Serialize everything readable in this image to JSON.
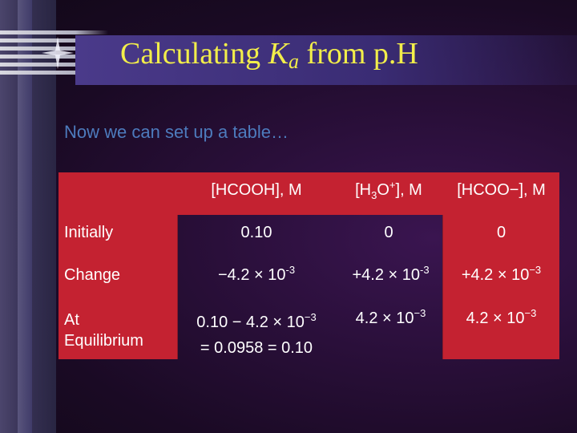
{
  "slide": {
    "title_main": "Calculating ",
    "title_ka_k": "K",
    "title_ka_a": "a",
    "title_rest": " from p.H",
    "subtitle": "Now we can set up a table…"
  },
  "table": {
    "headers": {
      "hcooh": "[HCOOH], M",
      "h3o_pre": "[H",
      "h3o_sub": "3",
      "h3o_mid": "O",
      "h3o_sup": "+",
      "h3o_post": "], M",
      "hcoo": "[HCOO−], M"
    },
    "rows": [
      {
        "label": "Initially",
        "hcooh": "0.10",
        "h3o": "0",
        "hcoo": "0"
      },
      {
        "label": "Change",
        "hcooh_base": "−4.2 × 10",
        "hcooh_exp": "-3",
        "h3o_base": "+4.2 × 10",
        "h3o_exp": "-3",
        "hcoo_base": "+4.2 × 10",
        "hcoo_exp": "−3"
      },
      {
        "label_line1": "At",
        "label_line2": "Equilibrium",
        "hcooh_line1_base": "0.10 − 4.2 × 10",
        "hcooh_line1_exp": "−3",
        "hcooh_line2": "= 0.0958 = 0.10",
        "h3o_base": "4.2 × 10",
        "h3o_exp": "−3",
        "hcoo_base": "4.2 × 10",
        "hcoo_exp": "−3"
      }
    ]
  },
  "colors": {
    "title": "#f2ee4a",
    "subtitle": "#4d7bbd",
    "table_red": "#c42231",
    "text": "#ffffff"
  }
}
